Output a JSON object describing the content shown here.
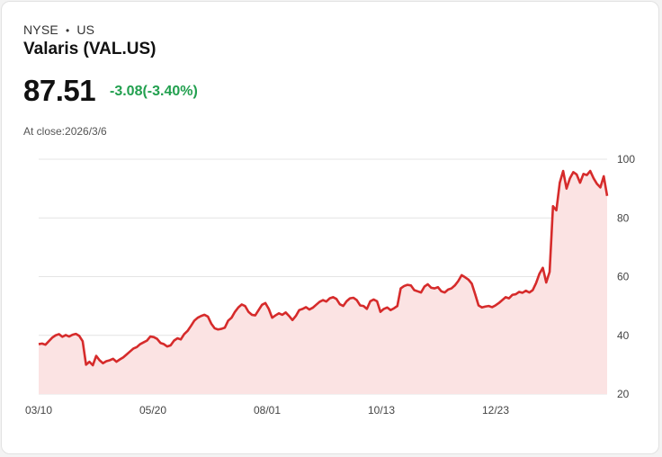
{
  "header": {
    "exchange": "NYSE",
    "separator": "•",
    "market": "US",
    "name": "Valaris (VAL.US)",
    "price": "87.51",
    "change": "-3.08(-3.40%)",
    "close_label": "At close:2026/3/6"
  },
  "colors": {
    "line": "#d62b2b",
    "fill": "#fbe3e3",
    "change_text": "#22a04f",
    "grid": "#e4e4e4"
  },
  "chart_data": {
    "type": "area",
    "title": "",
    "xlabel": "",
    "ylabel": "",
    "ylim": [
      20,
      100
    ],
    "yticks": [
      20,
      40,
      60,
      80,
      100
    ],
    "xtick_labels": [
      "03/10",
      "05/20",
      "08/01",
      "10/13",
      "12/23"
    ],
    "series": [
      {
        "name": "VAL.US close",
        "values": [
          37.0,
          37.2,
          36.8,
          38.0,
          39.2,
          40.0,
          40.4,
          39.5,
          40.1,
          39.6,
          40.2,
          40.5,
          39.8,
          38.0,
          30.0,
          31.0,
          29.8,
          33.0,
          31.5,
          30.5,
          31.2,
          31.5,
          32.0,
          31.0,
          31.8,
          32.5,
          33.5,
          34.5,
          35.5,
          36.0,
          37.0,
          37.6,
          38.2,
          39.6,
          39.4,
          38.8,
          37.4,
          37.0,
          36.2,
          36.6,
          38.2,
          39.0,
          38.6,
          40.4,
          41.5,
          43.2,
          45.0,
          46.0,
          46.6,
          47.0,
          46.4,
          44.0,
          42.4,
          42.0,
          42.2,
          42.6,
          45.0,
          46.0,
          48.0,
          49.5,
          50.5,
          50.0,
          48.0,
          47.0,
          46.8,
          48.6,
          50.4,
          51.0,
          49.0,
          46.0,
          46.8,
          47.5,
          47.0,
          47.8,
          46.6,
          45.2,
          46.6,
          48.6,
          49.0,
          49.6,
          48.8,
          49.4,
          50.4,
          51.4,
          52.0,
          51.5,
          52.6,
          53.0,
          52.4,
          50.6,
          50.0,
          51.6,
          52.6,
          52.8,
          52.0,
          50.2,
          50.0,
          49.0,
          51.6,
          52.2,
          51.6,
          48.0,
          49.0,
          49.5,
          48.6,
          49.2,
          50.0,
          56.0,
          56.8,
          57.2,
          57.0,
          55.4,
          55.0,
          54.6,
          56.6,
          57.4,
          56.2,
          56.0,
          56.4,
          55.0,
          54.6,
          55.6,
          56.0,
          57.0,
          58.5,
          60.5,
          59.8,
          59.0,
          57.6,
          54.0,
          50.2,
          49.5,
          49.8,
          50.0,
          49.6,
          50.2,
          51.0,
          52.0,
          53.0,
          52.6,
          53.8,
          54.0,
          54.8,
          54.5,
          55.2,
          54.6,
          55.4,
          57.8,
          61.0,
          63.0,
          58.0,
          61.6,
          84.0,
          82.6,
          92.0,
          96.0,
          90.0,
          93.5,
          95.6,
          94.8,
          92.0,
          95.0,
          94.6,
          96.0,
          93.5,
          91.6,
          90.4,
          94.2,
          87.51
        ]
      }
    ]
  }
}
